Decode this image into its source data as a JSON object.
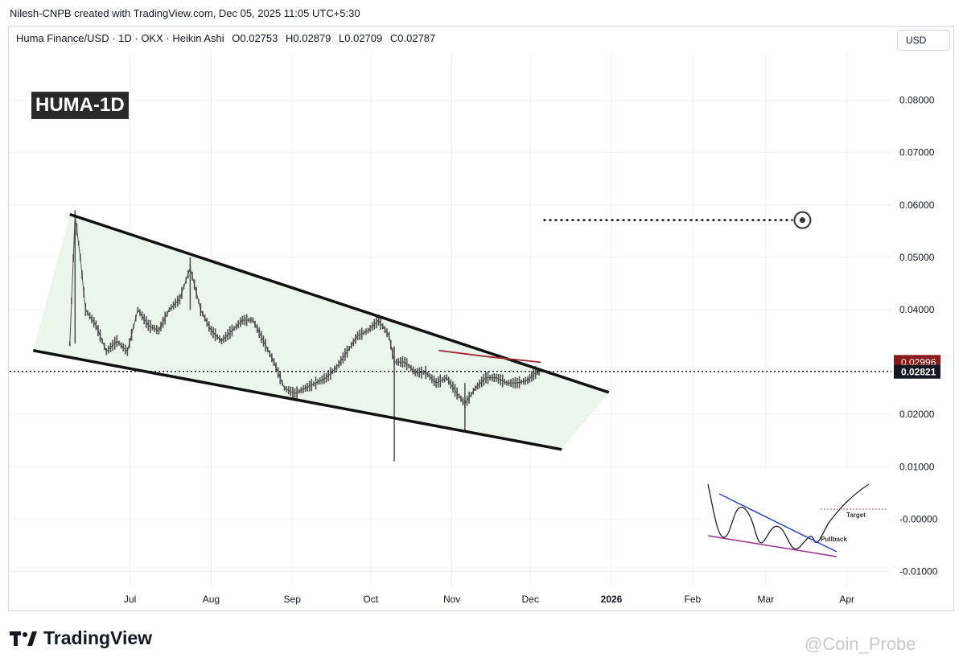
{
  "header": {
    "attribution": "Nilesh-CNPB created with TradingView.com, Dec 05, 2025 11:05 UTC+5:30",
    "symbol_line": "Huma Finance/USD · 1D · OKX · Heikin Ashi",
    "ohlc": {
      "open": "O0.02753",
      "high": "H0.02879",
      "low": "L0.02709",
      "close": "C0.02787"
    },
    "currency": "USD"
  },
  "symbol_badge": "HUMA-1D",
  "footer": {
    "brand": "TradingView",
    "watermark": "@Coin_Probe"
  },
  "colors": {
    "channel_fill": "#e8f5e9",
    "candle": "#4d4d4d",
    "trendline": "#111111",
    "ma_line": "#a0262a",
    "ma_label_bg": "#8b1a1a",
    "price_label_bg": "#131722",
    "inset_blue": "#2b3fd6",
    "inset_purple": "#9b2d8f",
    "inset_target": "#c24a4a"
  },
  "chart_data": {
    "type": "line",
    "title": "Huma Finance/USD · 1D · OKX · Heikin Ashi",
    "y_axis": {
      "ticks": [
        "0.08000",
        "0.07000",
        "0.06000",
        "0.05000",
        "0.04000",
        "0.02000",
        "0.01000",
        "-0.00000",
        "-0.01000"
      ],
      "tick_values": [
        0.08,
        0.07,
        0.06,
        0.05,
        0.04,
        0.02,
        0.01,
        0.0,
        -0.01
      ],
      "range": [
        -0.013,
        0.089
      ]
    },
    "x_axis": {
      "labels": [
        "Jul",
        "Aug",
        "Sep",
        "Oct",
        "Nov",
        "Dec",
        "2026",
        "Feb",
        "Mar",
        "Apr"
      ],
      "dates": [
        "2025-07-01",
        "2025-08-01",
        "2025-09-01",
        "2025-10-01",
        "2025-11-01",
        "2025-12-01",
        "2026-01-01",
        "2026-02-01",
        "2026-03-01",
        "2026-04-01"
      ],
      "range": [
        "2025-05-16",
        "2026-04-18"
      ]
    },
    "price_series": {
      "name": "HUMA",
      "points": [
        [
          "2025-06-08",
          0.0335
        ],
        [
          "2025-06-10",
          0.058
        ],
        [
          "2025-06-12",
          0.05
        ],
        [
          "2025-06-14",
          0.04
        ],
        [
          "2025-06-18",
          0.037
        ],
        [
          "2025-06-22",
          0.032
        ],
        [
          "2025-06-26",
          0.034
        ],
        [
          "2025-06-30",
          0.032
        ],
        [
          "2025-07-04",
          0.04
        ],
        [
          "2025-07-08",
          0.037
        ],
        [
          "2025-07-12",
          0.036
        ],
        [
          "2025-07-16",
          0.04
        ],
        [
          "2025-07-20",
          0.042
        ],
        [
          "2025-07-24",
          0.048
        ],
        [
          "2025-07-28",
          0.04
        ],
        [
          "2025-08-01",
          0.036
        ],
        [
          "2025-08-05",
          0.034
        ],
        [
          "2025-08-09",
          0.036
        ],
        [
          "2025-08-13",
          0.038
        ],
        [
          "2025-08-17",
          0.038
        ],
        [
          "2025-08-21",
          0.034
        ],
        [
          "2025-08-25",
          0.03
        ],
        [
          "2025-08-29",
          0.025
        ],
        [
          "2025-09-02",
          0.024
        ],
        [
          "2025-09-06",
          0.025
        ],
        [
          "2025-09-10",
          0.026
        ],
        [
          "2025-09-14",
          0.027
        ],
        [
          "2025-09-18",
          0.029
        ],
        [
          "2025-09-22",
          0.032
        ],
        [
          "2025-09-26",
          0.035
        ],
        [
          "2025-09-30",
          0.036
        ],
        [
          "2025-10-04",
          0.038
        ],
        [
          "2025-10-08",
          0.035
        ],
        [
          "2025-10-10",
          0.03
        ],
        [
          "2025-10-14",
          0.03
        ],
        [
          "2025-10-18",
          0.028
        ],
        [
          "2025-10-22",
          0.028
        ],
        [
          "2025-10-26",
          0.026
        ],
        [
          "2025-10-30",
          0.027
        ],
        [
          "2025-11-03",
          0.024
        ],
        [
          "2025-11-06",
          0.022
        ],
        [
          "2025-11-10",
          0.025
        ],
        [
          "2025-11-14",
          0.027
        ],
        [
          "2025-11-18",
          0.027
        ],
        [
          "2025-11-22",
          0.026
        ],
        [
          "2025-11-26",
          0.026
        ],
        [
          "2025-11-30",
          0.0265
        ],
        [
          "2025-12-03",
          0.028
        ],
        [
          "2025-12-05",
          0.0282
        ]
      ]
    },
    "wicks": [
      {
        "date": "2025-06-10",
        "low": 0.0335,
        "high": 0.058
      },
      {
        "date": "2025-07-24",
        "low": 0.04,
        "high": 0.05
      },
      {
        "date": "2025-10-10",
        "low": 0.011,
        "high": 0.033
      },
      {
        "date": "2025-11-06",
        "low": 0.017,
        "high": 0.026
      }
    ],
    "channel": {
      "upper": [
        [
          "2025-06-08",
          0.0582
        ],
        [
          "2025-12-31",
          0.0242
        ]
      ],
      "lower": [
        [
          "2025-05-25",
          0.0322
        ],
        [
          "2025-12-13",
          0.0133
        ]
      ]
    },
    "moving_average": [
      [
        "2025-10-27",
        0.0322
      ],
      [
        "2025-11-15",
        0.031
      ],
      [
        "2025-12-05",
        0.02996
      ]
    ],
    "target": {
      "value": 0.0571,
      "from": "2025-12-06",
      "to": "2026-03-15"
    },
    "current_price": {
      "value": 0.02821,
      "label": "0.02821"
    },
    "ma_label": "0.02996",
    "inset": {
      "labels": [
        "Target",
        "Pullback"
      ]
    }
  }
}
